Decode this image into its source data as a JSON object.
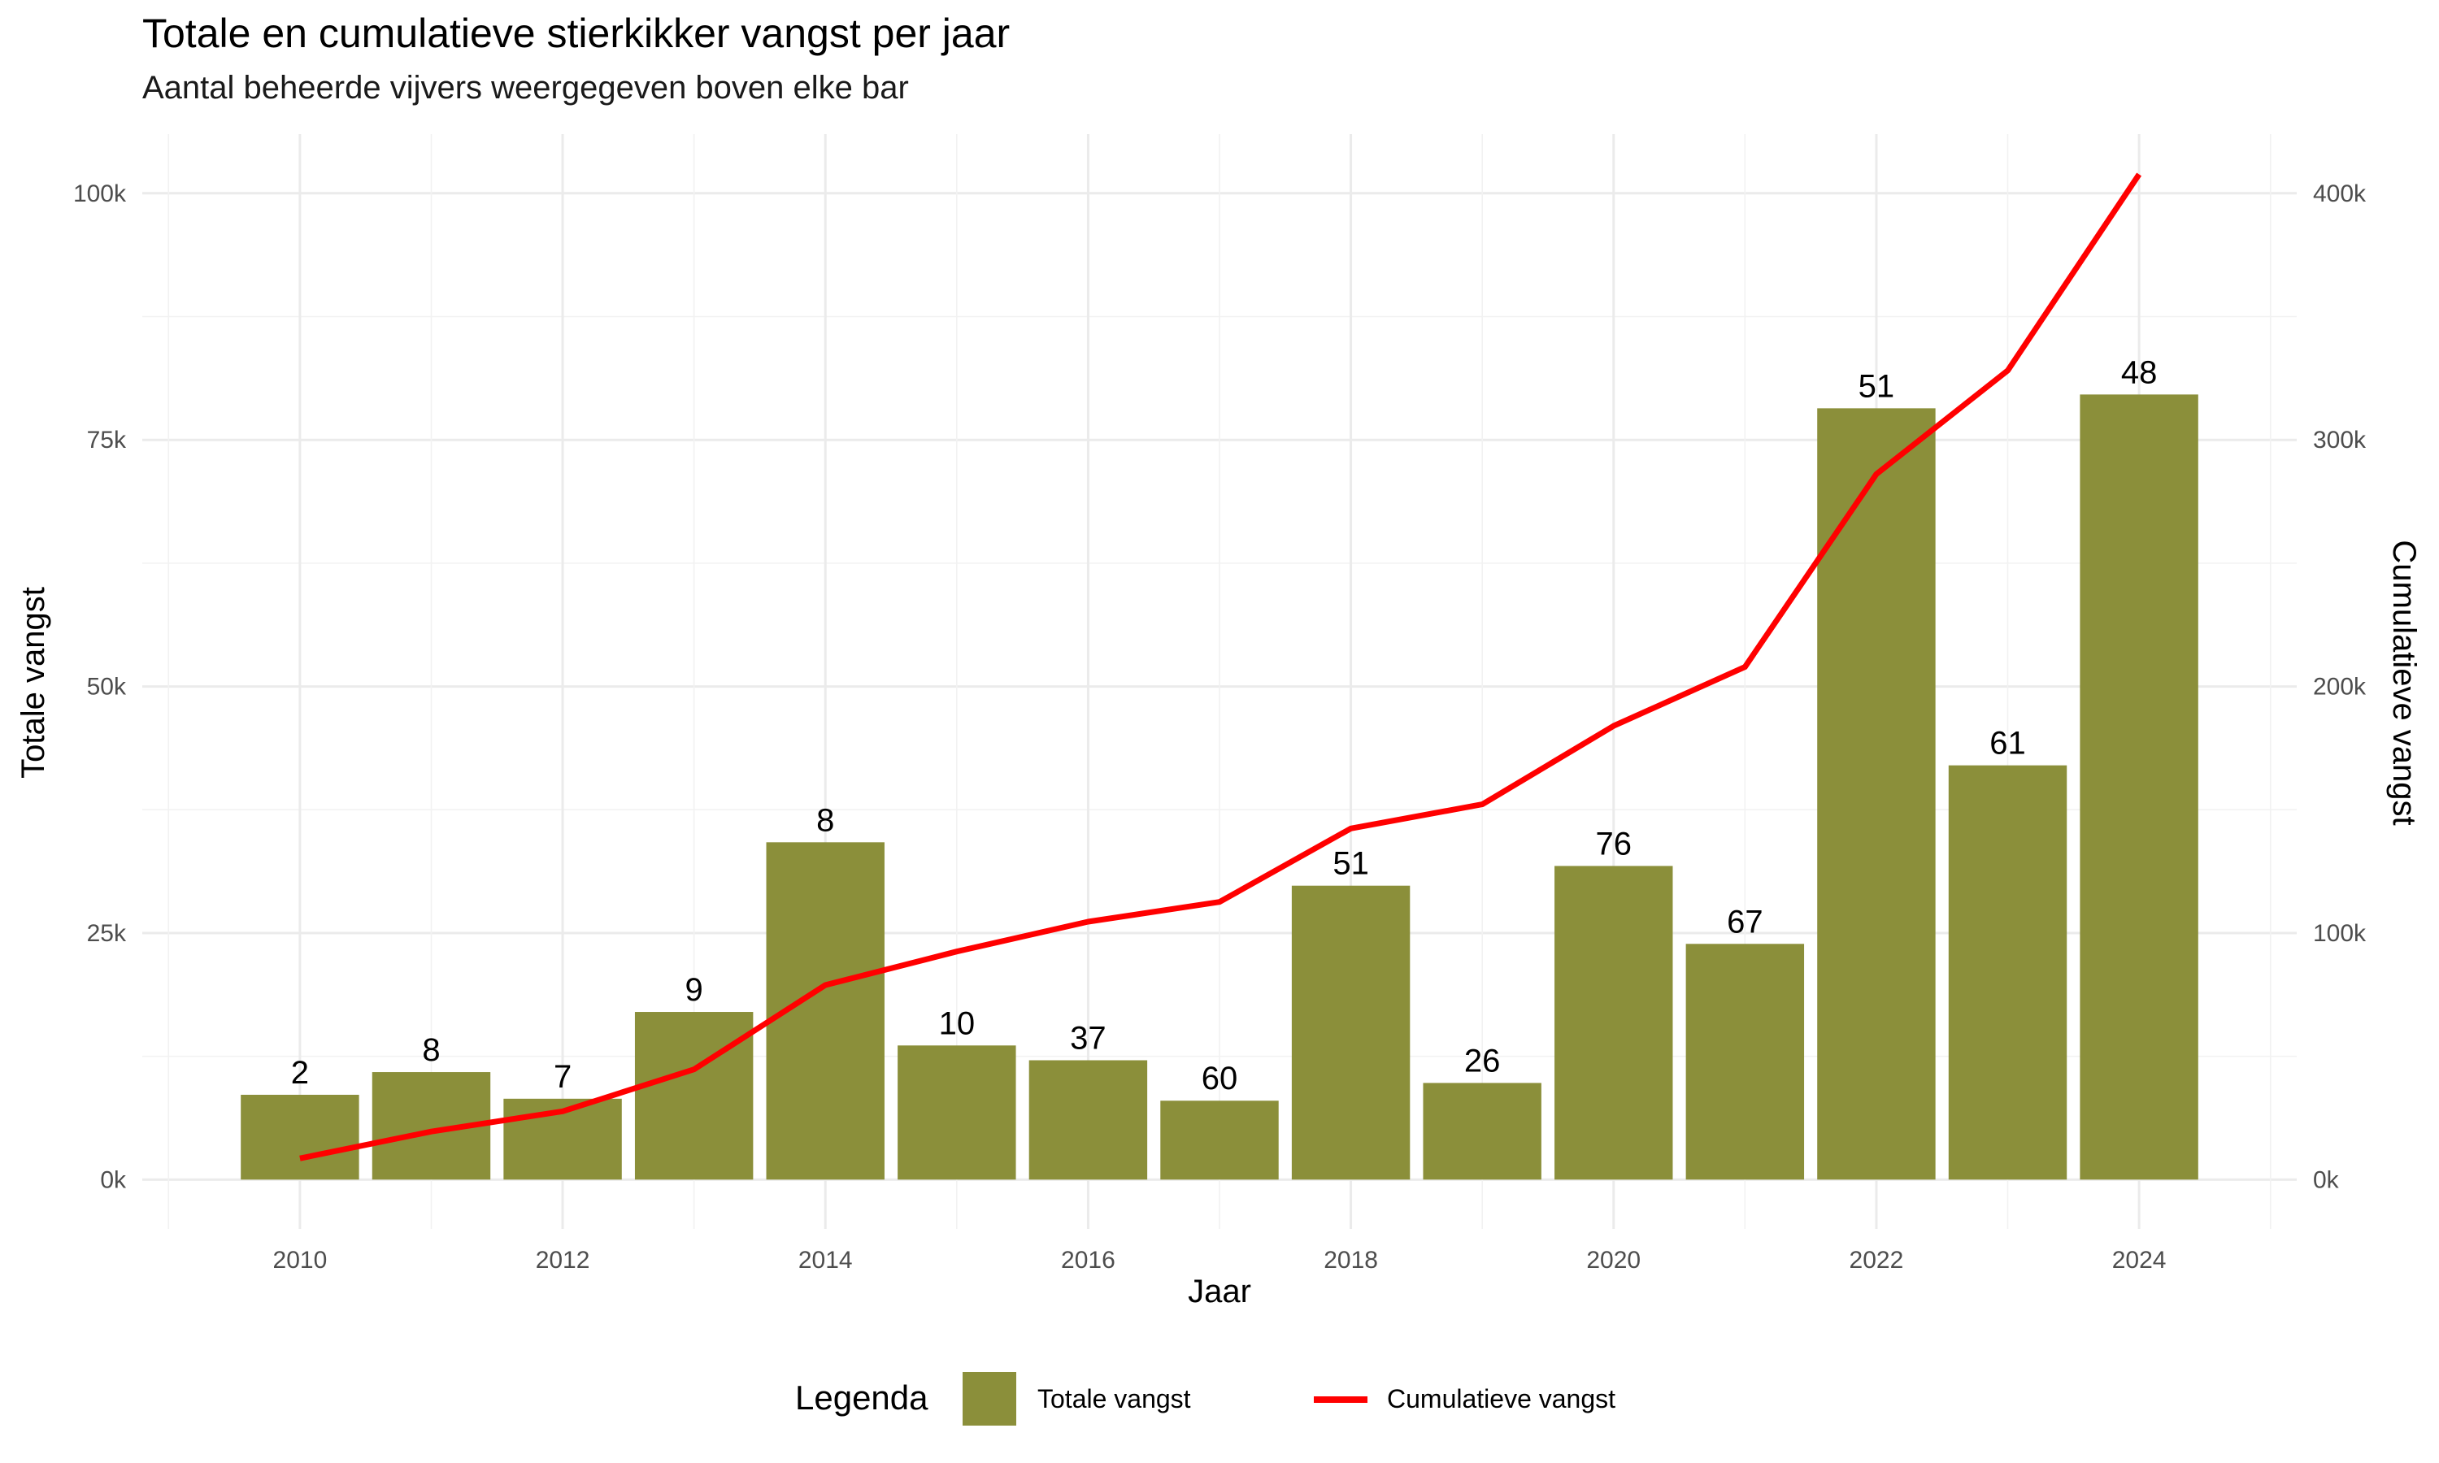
{
  "chart_data": {
    "type": "bar",
    "title": "Totale en cumulatieve stierkikker vangst per jaar",
    "subtitle": "Aantal beheerde vijvers weergegeven boven elke bar",
    "xlabel": "Jaar",
    "ylabel": "Totale vangst",
    "y2label": "Cumulatieve vangst",
    "x_ticks": [
      "2010",
      "2012",
      "2014",
      "2016",
      "2018",
      "2020",
      "2022",
      "2024"
    ],
    "y_ticks": [
      "0k",
      "25k",
      "50k",
      "75k",
      "100k"
    ],
    "y2_ticks": [
      "0k",
      "100k",
      "200k",
      "300k",
      "400k"
    ],
    "ylim": [
      -5000,
      106000
    ],
    "y2lim": [
      -20000,
      424000
    ],
    "xlim": [
      2008.8,
      2025.2
    ],
    "grid": true,
    "legend_position": "bottom",
    "legend_title": "Legenda",
    "bar_color": "#8b8f3a",
    "line_color": "#ff0000",
    "x": [
      2010,
      2011,
      2012,
      2013,
      2014,
      2015,
      2016,
      2017,
      2018,
      2019,
      2020,
      2021,
      2022,
      2023,
      2024
    ],
    "series": [
      {
        "name": "Totale vangst",
        "type": "bar",
        "axis": "left",
        "values": [
          8600,
          10900,
          8200,
          17000,
          34200,
          13600,
          12100,
          8000,
          29800,
          9800,
          31800,
          23900,
          78200,
          42000,
          79600
        ]
      },
      {
        "name": "Cumulatieve vangst",
        "type": "line",
        "axis": "right",
        "values": [
          8600,
          19500,
          27700,
          44700,
          78900,
          92500,
          104600,
          112600,
          142400,
          152200,
          184000,
          207900,
          286100,
          328100,
          407700
        ]
      }
    ],
    "bar_labels": [
      "2",
      "8",
      "7",
      "9",
      "8",
      "10",
      "37",
      "60",
      "51",
      "26",
      "76",
      "67",
      "51",
      "61",
      "48"
    ]
  }
}
